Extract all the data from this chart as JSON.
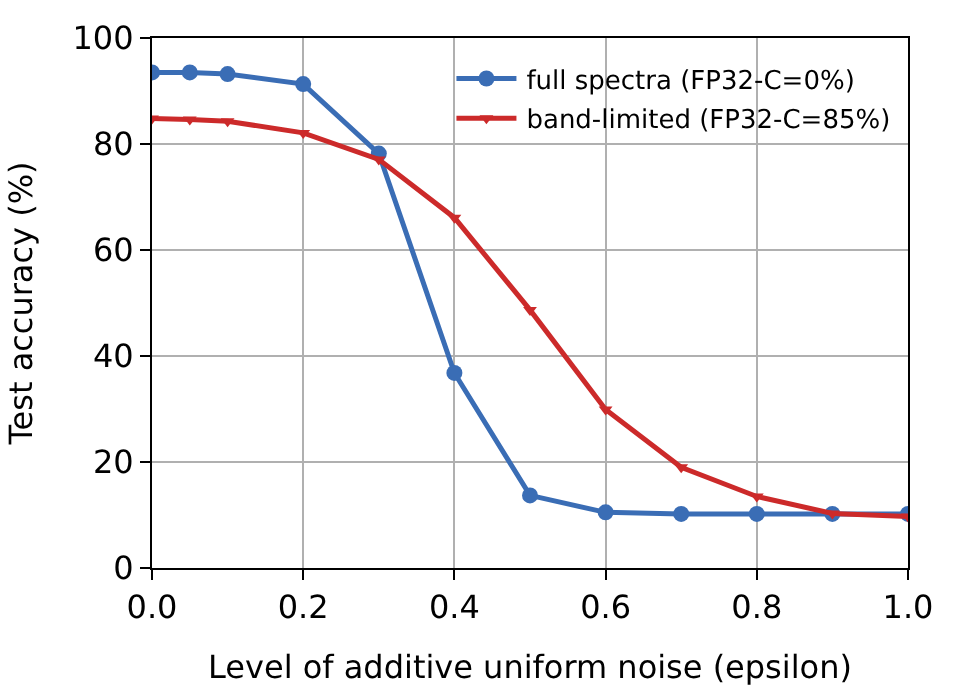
{
  "chart_data": {
    "type": "line",
    "xlabel": "Level of additive uniform noise (epsilon)",
    "ylabel": "Test accuracy (%)",
    "x": [
      0,
      0.05,
      0.1,
      0.2,
      0.3,
      0.4,
      0.5,
      0.6,
      0.7,
      0.8,
      0.9,
      1.0
    ],
    "series": [
      {
        "name": "full spectra (FP32-C=0%)",
        "color": "#3a6db5",
        "marker": "circle",
        "values": [
          93.5,
          93.5,
          93.2,
          91.3,
          78.2,
          36.8,
          13.7,
          10.5,
          10.2,
          10.2,
          10.2,
          10.2
        ]
      },
      {
        "name": "band-limited (FP32-C=85%)",
        "color": "#cc2a2a",
        "marker": "triangle",
        "values": [
          84.8,
          84.6,
          84.3,
          82.1,
          77.1,
          66.1,
          48.7,
          29.9,
          19.0,
          13.5,
          10.3,
          9.7
        ]
      }
    ],
    "xlim": [
      0,
      1.0
    ],
    "xticks": [
      {
        "value": 0,
        "label": "0.0"
      },
      0.2,
      0.4,
      0.6,
      0.8,
      {
        "value": 1.0,
        "label": "1.0"
      }
    ],
    "ylim": [
      0,
      100
    ],
    "yticks": [
      0,
      20,
      40,
      60,
      80,
      100
    ],
    "grid": true,
    "legend": "top right",
    "line_style": "solid"
  }
}
